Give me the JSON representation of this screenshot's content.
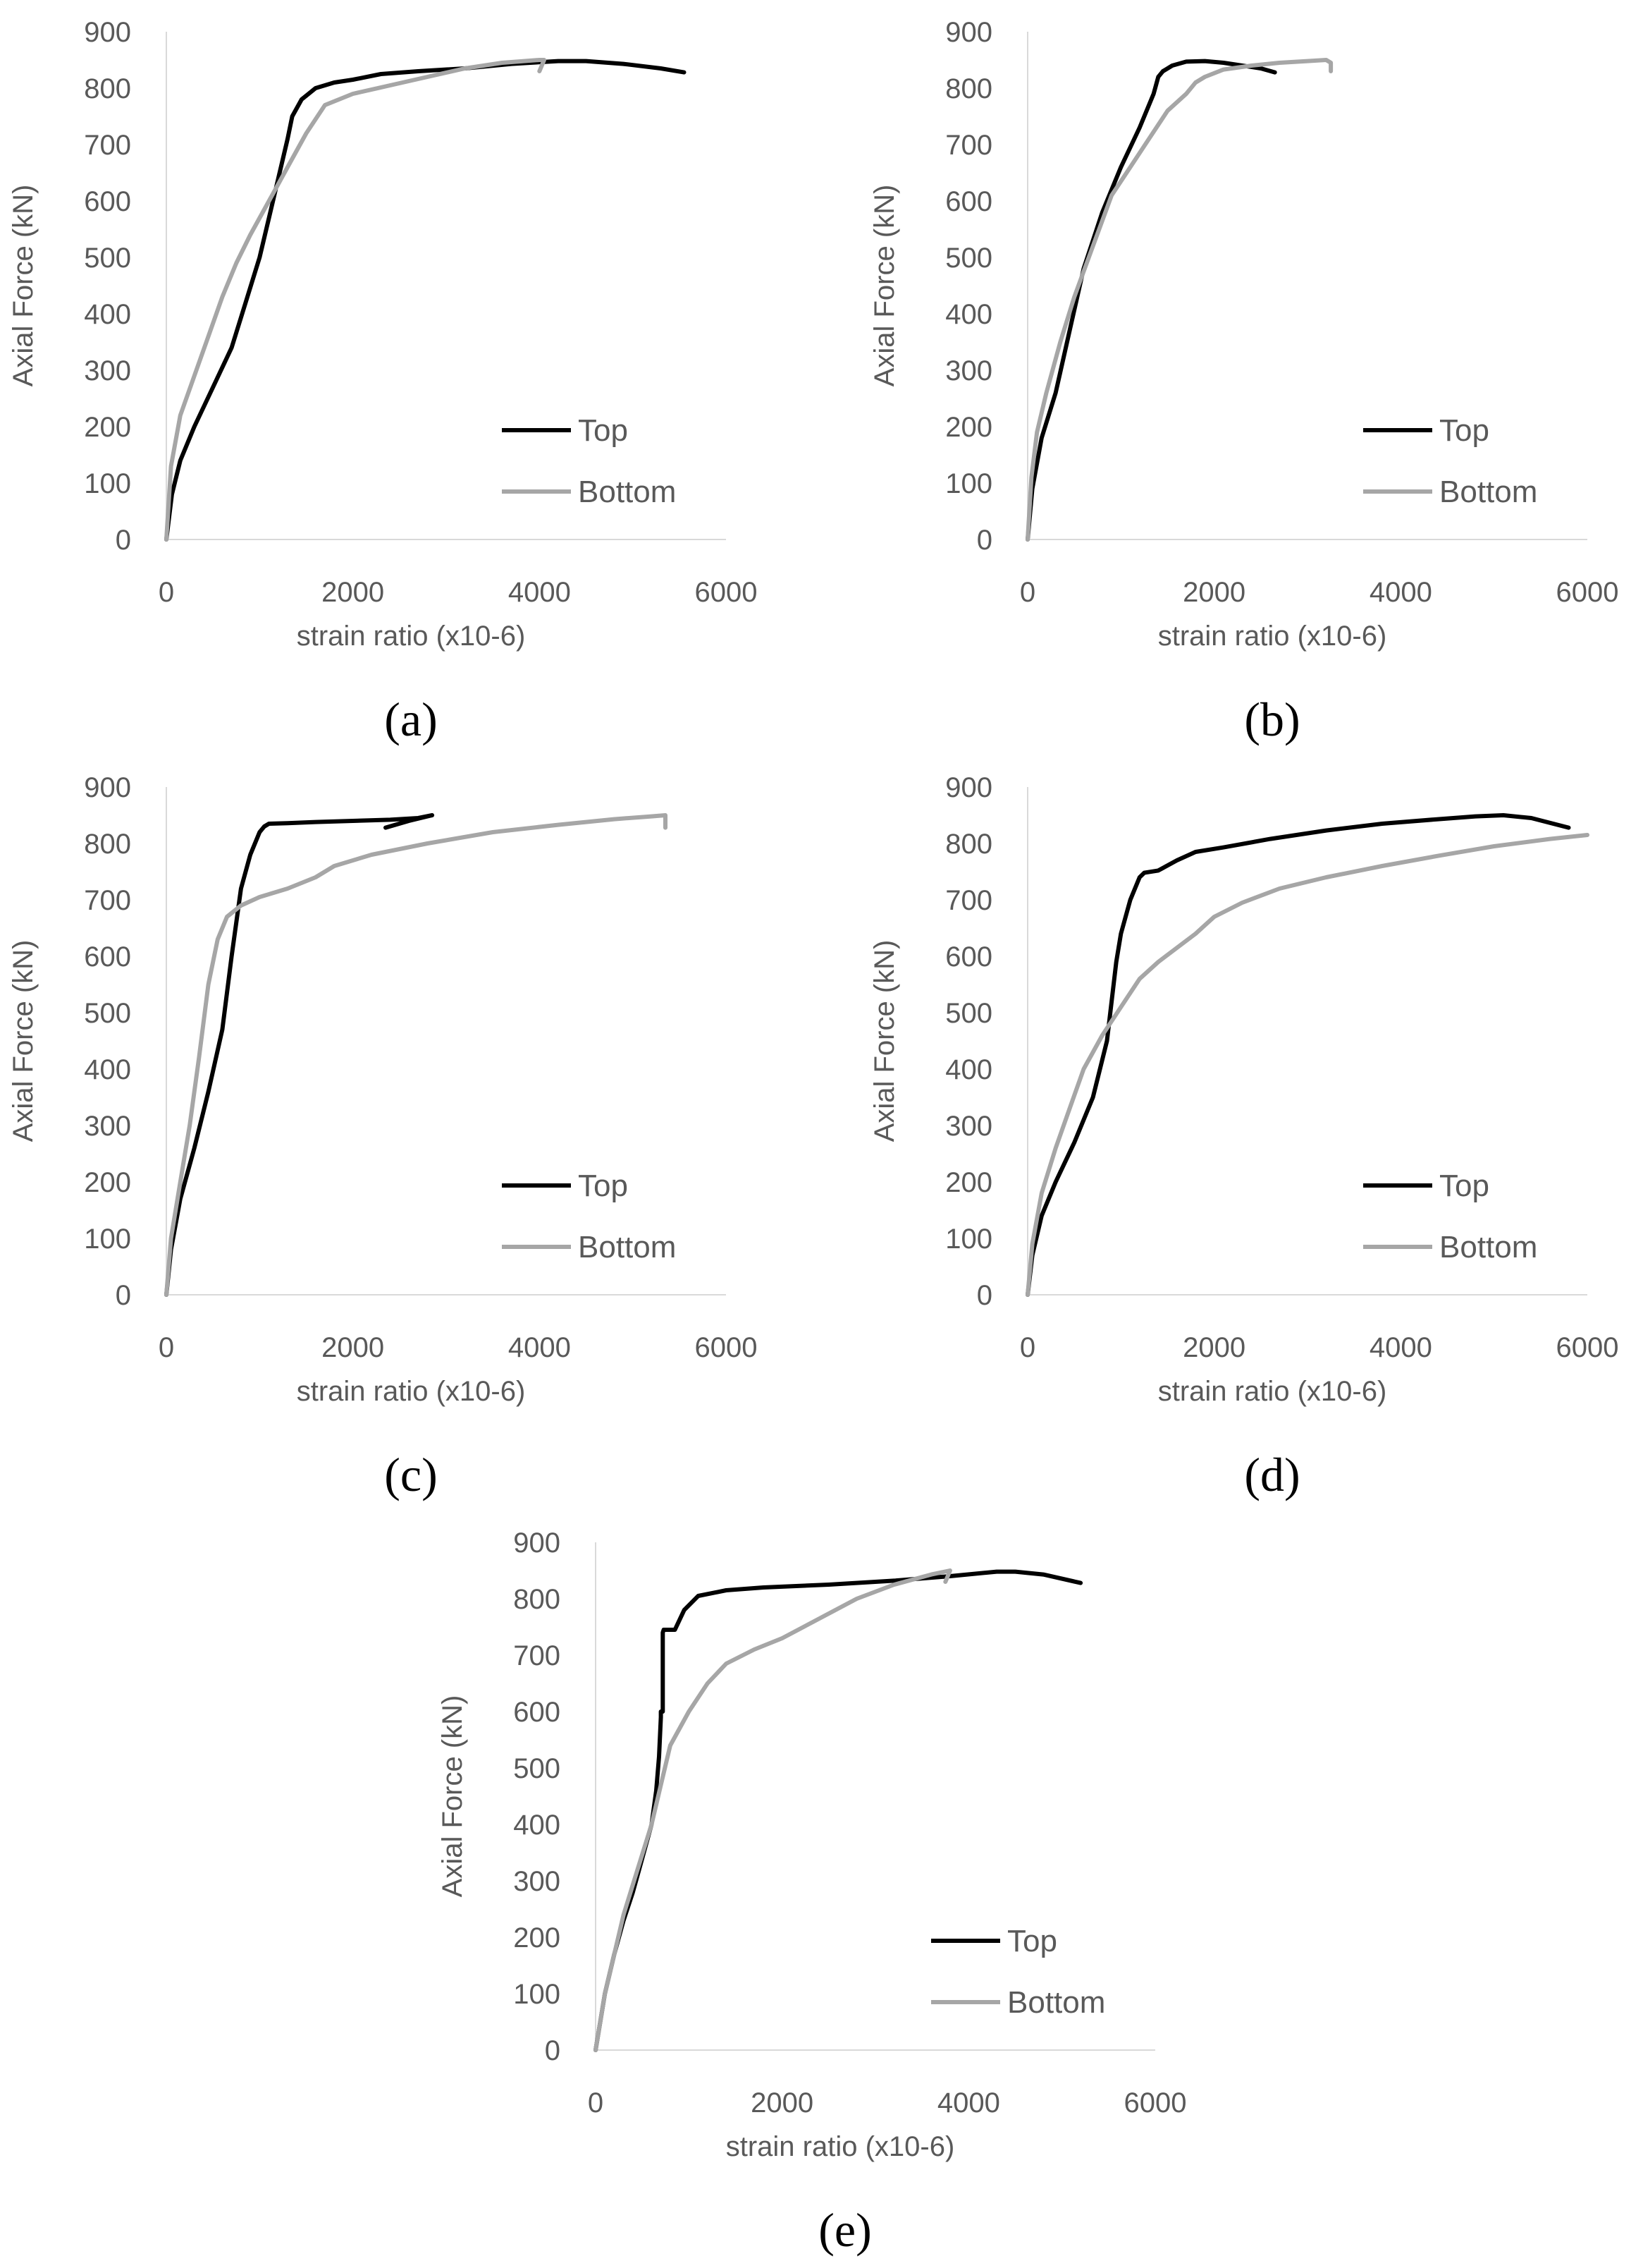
{
  "chart_data": [
    {
      "type": "line",
      "caption": "(a)",
      "xlabel": "strain ratio (x10-6)",
      "ylabel": "Axial Force (kN)",
      "xlim": [
        0,
        6000
      ],
      "ylim": [
        0,
        900
      ],
      "xticks": [
        0,
        2000,
        4000,
        6000
      ],
      "yticks": [
        0,
        100,
        200,
        300,
        400,
        500,
        600,
        700,
        800,
        900
      ],
      "legend_position": "bottom-right",
      "series": [
        {
          "name": "Top",
          "color": "#000000",
          "x": [
            0,
            60,
            150,
            300,
            500,
            700,
            850,
            1000,
            1100,
            1200,
            1300,
            1350,
            1450,
            1600,
            1800,
            2000,
            2300,
            2700,
            3200,
            3700,
            4200,
            4500,
            4900,
            5300,
            5550
          ],
          "y": [
            0,
            80,
            140,
            200,
            270,
            340,
            420,
            500,
            570,
            640,
            710,
            750,
            780,
            800,
            810,
            815,
            825,
            830,
            835,
            843,
            848,
            848,
            843,
            835,
            828
          ]
        },
        {
          "name": "Bottom",
          "color": "#a6a6a6",
          "x": [
            0,
            50,
            150,
            300,
            450,
            600,
            750,
            900,
            1100,
            1300,
            1500,
            1700,
            2000,
            2400,
            2800,
            3200,
            3600,
            4000,
            4050,
            4000
          ],
          "y": [
            0,
            130,
            220,
            290,
            360,
            430,
            490,
            540,
            600,
            660,
            720,
            770,
            790,
            805,
            820,
            835,
            845,
            850,
            850,
            830
          ]
        }
      ]
    },
    {
      "type": "line",
      "caption": "(b)",
      "xlabel": "strain ratio (x10-6)",
      "ylabel": "Axial Force (kN)",
      "xlim": [
        0,
        6000
      ],
      "ylim": [
        0,
        900
      ],
      "xticks": [
        0,
        2000,
        4000,
        6000
      ],
      "yticks": [
        0,
        100,
        200,
        300,
        400,
        500,
        600,
        700,
        800,
        900
      ],
      "legend_position": "bottom-right",
      "series": [
        {
          "name": "Top",
          "color": "#000000",
          "x": [
            0,
            50,
            150,
            300,
            450,
            600,
            800,
            1000,
            1200,
            1350,
            1400,
            1450,
            1550,
            1700,
            1900,
            2100,
            2300,
            2500,
            2650
          ],
          "y": [
            0,
            90,
            180,
            260,
            370,
            480,
            580,
            660,
            730,
            790,
            820,
            830,
            840,
            847,
            848,
            845,
            840,
            835,
            828
          ]
        },
        {
          "name": "Bottom",
          "color": "#a6a6a6",
          "x": [
            0,
            40,
            100,
            200,
            350,
            500,
            700,
            900,
            1100,
            1300,
            1500,
            1700,
            1750,
            1800,
            1900,
            2100,
            2400,
            2700,
            3000,
            3200,
            3250,
            3250
          ],
          "y": [
            0,
            110,
            190,
            260,
            350,
            430,
            520,
            610,
            660,
            710,
            760,
            790,
            800,
            810,
            820,
            833,
            840,
            845,
            848,
            850,
            845,
            830
          ]
        }
      ]
    },
    {
      "type": "line",
      "caption": "(c)",
      "xlabel": "strain ratio (x10-6)",
      "ylabel": "Axial Force (kN)",
      "xlim": [
        0,
        6000
      ],
      "ylim": [
        0,
        900
      ],
      "xticks": [
        0,
        2000,
        4000,
        6000
      ],
      "yticks": [
        0,
        100,
        200,
        300,
        400,
        500,
        600,
        700,
        800,
        900
      ],
      "legend_position": "bottom-right",
      "series": [
        {
          "name": "Top",
          "color": "#000000",
          "x": [
            0,
            50,
            150,
            300,
            450,
            600,
            700,
            800,
            900,
            1000,
            1050,
            1100,
            1300,
            1600,
            2000,
            2400,
            2700,
            2850,
            2600,
            2350
          ],
          "y": [
            0,
            80,
            170,
            260,
            360,
            470,
            600,
            720,
            780,
            820,
            830,
            835,
            836,
            838,
            840,
            842,
            845,
            850,
            840,
            828
          ]
        },
        {
          "name": "Bottom",
          "color": "#a6a6a6",
          "x": [
            0,
            50,
            150,
            250,
            350,
            450,
            550,
            650,
            800,
            1000,
            1300,
            1600,
            1800,
            2200,
            2800,
            3500,
            4200,
            4800,
            5200,
            5350,
            5350
          ],
          "y": [
            0,
            100,
            200,
            300,
            420,
            550,
            630,
            670,
            690,
            705,
            720,
            740,
            760,
            780,
            800,
            820,
            833,
            843,
            848,
            850,
            828
          ]
        }
      ]
    },
    {
      "type": "line",
      "caption": "(d)",
      "xlabel": "strain ratio (x10-6)",
      "ylabel": "Axial Force (kN)",
      "xlim": [
        0,
        6000
      ],
      "ylim": [
        0,
        900
      ],
      "xticks": [
        0,
        2000,
        4000,
        6000
      ],
      "yticks": [
        0,
        100,
        200,
        300,
        400,
        500,
        600,
        700,
        800,
        900
      ],
      "legend_position": "bottom-right",
      "series": [
        {
          "name": "Top",
          "color": "#000000",
          "x": [
            0,
            50,
            150,
            300,
            500,
            700,
            850,
            900,
            950,
            1000,
            1100,
            1200,
            1250,
            1400,
            1600,
            1800,
            2100,
            2600,
            3200,
            3800,
            4400,
            4800,
            5100,
            5400,
            5800
          ],
          "y": [
            0,
            70,
            140,
            200,
            270,
            350,
            450,
            520,
            590,
            640,
            700,
            740,
            748,
            752,
            770,
            785,
            793,
            808,
            823,
            835,
            843,
            848,
            850,
            845,
            828
          ]
        },
        {
          "name": "Bottom",
          "color": "#a6a6a6",
          "x": [
            0,
            50,
            150,
            300,
            450,
            600,
            800,
            1000,
            1200,
            1400,
            1600,
            1800,
            1900,
            2000,
            2300,
            2700,
            3200,
            3800,
            4400,
            5000,
            5600,
            6000
          ],
          "y": [
            0,
            90,
            180,
            260,
            330,
            400,
            460,
            510,
            560,
            590,
            615,
            640,
            655,
            670,
            695,
            720,
            740,
            760,
            778,
            795,
            808,
            815
          ]
        }
      ]
    },
    {
      "type": "line",
      "caption": "(e)",
      "xlabel": "strain ratio (x10-6)",
      "ylabel": "Axial Force (kN)",
      "xlim": [
        0,
        6000
      ],
      "ylim": [
        0,
        900
      ],
      "xticks": [
        0,
        2000,
        4000,
        6000
      ],
      "yticks": [
        0,
        100,
        200,
        300,
        400,
        500,
        600,
        700,
        800,
        900
      ],
      "legend_position": "bottom-right",
      "series": [
        {
          "name": "Top",
          "color": "#000000",
          "x": [
            0,
            100,
            200,
            300,
            400,
            500,
            600,
            650,
            680,
            700,
            700,
            720,
            720,
            730,
            850,
            950,
            1100,
            1400,
            1800,
            2500,
            3200,
            3800,
            4300,
            4500,
            4800,
            5200
          ],
          "y": [
            0,
            100,
            170,
            230,
            280,
            340,
            400,
            460,
            520,
            590,
            600,
            600,
            740,
            745,
            745,
            780,
            805,
            815,
            820,
            825,
            832,
            840,
            848,
            848,
            843,
            828
          ]
        },
        {
          "name": "Bottom",
          "color": "#a6a6a6",
          "x": [
            0,
            100,
            200,
            300,
            450,
            600,
            700,
            800,
            900,
            1000,
            1200,
            1400,
            1700,
            2000,
            2400,
            2800,
            3200,
            3600,
            3800,
            3750
          ],
          "y": [
            0,
            100,
            170,
            240,
            320,
            400,
            470,
            540,
            570,
            600,
            650,
            685,
            710,
            730,
            765,
            800,
            825,
            843,
            850,
            830
          ]
        }
      ]
    }
  ]
}
